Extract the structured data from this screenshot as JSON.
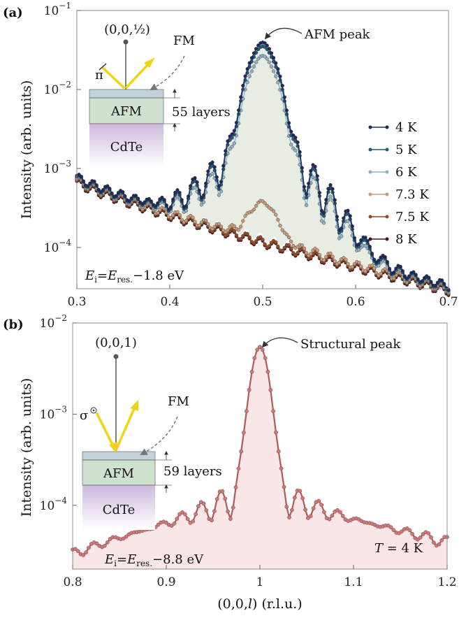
{
  "chart_data": [
    {
      "panel_label": "(a)",
      "type": "line",
      "xlabel": "",
      "ylabel": "Intensity (arb. units)",
      "xlim": [
        0.3,
        0.7
      ],
      "ylim": [
        3e-05,
        0.1
      ],
      "yscale": "log",
      "xticks": [
        "0.3",
        "0.4",
        "0.5",
        "0.6",
        "0.7"
      ],
      "yticks": [
        {
          "base": "10",
          "exp": "−1",
          "value": 0.1
        },
        {
          "base": "10",
          "exp": "−2",
          "value": 0.01
        },
        {
          "base": "10",
          "exp": "−3",
          "value": 0.001
        },
        {
          "base": "10",
          "exp": "−4",
          "value": 0.0001
        }
      ],
      "legend_position": "right",
      "series": [
        {
          "name": "4 K",
          "color": "#1f2a5c",
          "peak": 0.037
        },
        {
          "name": "5 K",
          "color": "#24597a",
          "peak": 0.033
        },
        {
          "name": "6 K",
          "color": "#8fb1c8",
          "peak": 0.025
        },
        {
          "name": "7.3 K",
          "color": "#c99a7a",
          "peak": 0.00024
        },
        {
          "name": "7.5 K",
          "color": "#9a4a22",
          "peak": 0
        },
        {
          "name": "8 K",
          "color": "#4b1620",
          "peak": 0
        }
      ],
      "annotations": {
        "peak_label": "AFM peak",
        "reflection": "(0,0,½)",
        "polarization": "π",
        "fm_label": "FM",
        "afm_layer": "AFM",
        "substrate": "CdTe",
        "layers": "55 layers",
        "energy_E": "E",
        "energy_sub": "i",
        "energy_eq": "=E",
        "energy_sub2": "res.",
        "energy_val": "−1.8 eV"
      }
    },
    {
      "panel_label": "(b)",
      "type": "line",
      "xlabel_pre": "(0,0,",
      "xlabel_var": "l",
      "xlabel_post": ") (r.l.u.)",
      "ylabel": "Intensity (arb. units)",
      "xlim": [
        0.8,
        1.2
      ],
      "ylim": [
        2e-05,
        0.01
      ],
      "yscale": "log",
      "xticks": [
        "0.8",
        "0.9",
        "1",
        "1.1",
        "1.2"
      ],
      "yticks": [
        {
          "base": "10",
          "exp": "−2",
          "value": 0.01
        },
        {
          "base": "10",
          "exp": "−3",
          "value": 0.001
        },
        {
          "base": "10",
          "exp": "−4",
          "value": 0.0001
        }
      ],
      "series": [
        {
          "name": "T = 4 K",
          "color": "#b05a5a",
          "peak": 0.0052
        }
      ],
      "annotations": {
        "peak_label": "Structural peak",
        "reflection": "(0,0,1)",
        "polarization": "σ",
        "fm_label": "FM",
        "afm_layer": "AFM",
        "substrate": "CdTe",
        "layers": "59 layers",
        "temp_T": "T",
        "temp_val": " = 4 K",
        "energy_E": "E",
        "energy_sub": "i",
        "energy_eq": "=E",
        "energy_sub2": "res.",
        "energy_val": "−8.8 eV"
      }
    }
  ]
}
